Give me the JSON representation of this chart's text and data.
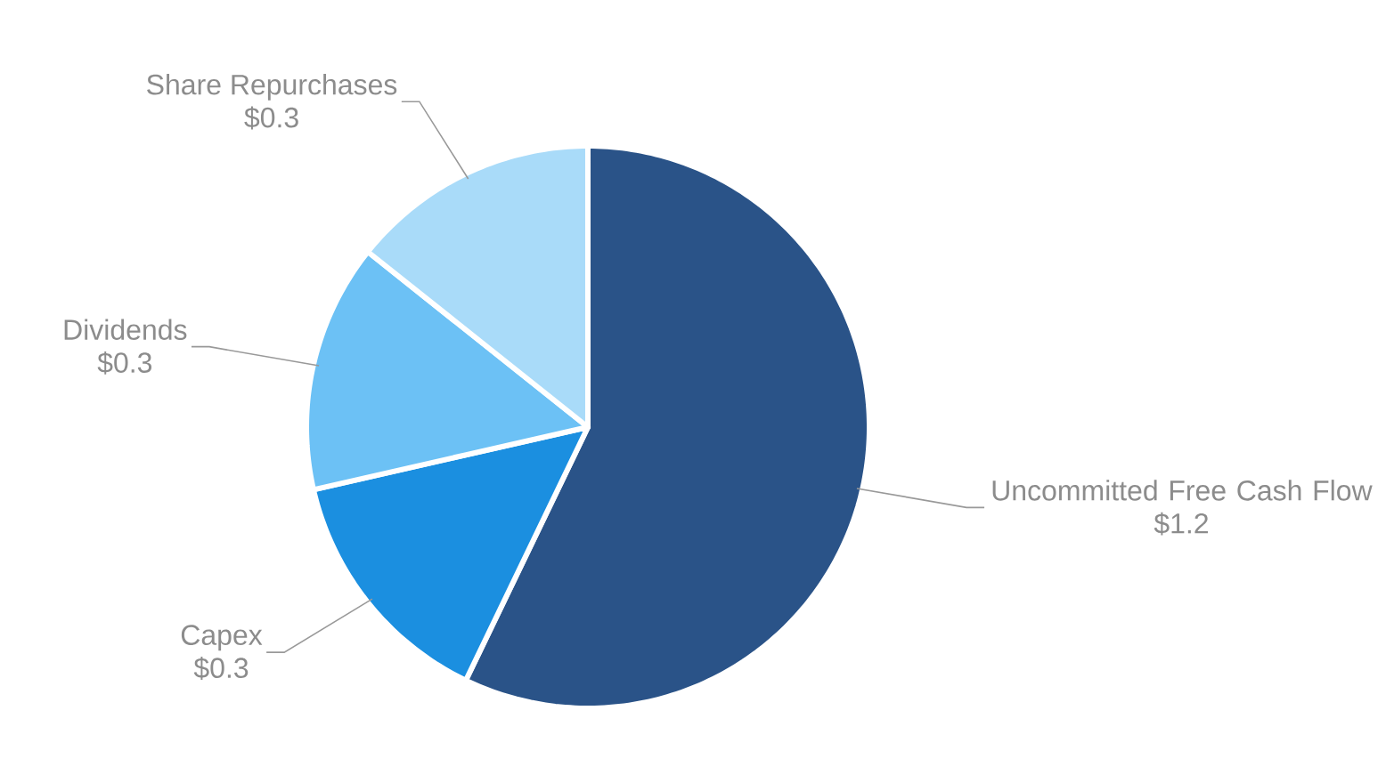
{
  "chart_data": {
    "type": "pie",
    "categories": [
      "Uncommitted Free Cash Flow",
      "Capex",
      "Dividends",
      "Share Repurchases"
    ],
    "values": [
      1.2,
      0.3,
      0.3,
      0.3
    ],
    "value_labels": [
      "$1.2",
      "$0.3",
      "$0.3",
      "$0.3"
    ],
    "colors": [
      "#2a5388",
      "#1b8fe0",
      "#6cc1f5",
      "#a9dbf9"
    ]
  }
}
